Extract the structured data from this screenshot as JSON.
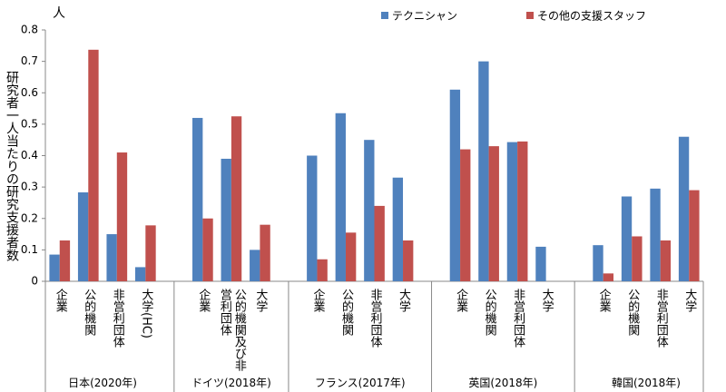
{
  "chart_data": {
    "type": "bar",
    "unit": "人",
    "y_label": "研究者一人当たりの研究支援者数",
    "groups": [
      {
        "name": "日本(2020年)",
        "categories": [
          "企業",
          "公的機関",
          "非営利団体",
          "大学(HC)"
        ]
      },
      {
        "name": "ドイツ(2018年)",
        "categories": [
          "企業",
          "公的機関及び非営利団体",
          "大学"
        ]
      },
      {
        "name": "フランス(2017年)",
        "categories": [
          "企業",
          "公的機関",
          "非営利団体",
          "大学"
        ]
      },
      {
        "name": "英国(2018年)",
        "categories": [
          "企業",
          "公的機関",
          "非営利団体",
          "大学"
        ]
      },
      {
        "name": "韓国(2018年)",
        "categories": [
          "企業",
          "公的機関",
          "非営利団体",
          "大学"
        ]
      }
    ],
    "series": [
      {
        "name": "テクニシャン",
        "color": "#4f81bd",
        "values": [
          0.085,
          0.283,
          0.15,
          0.045,
          0.52,
          0.39,
          0.1,
          0.4,
          0.535,
          0.45,
          0.33,
          0.61,
          0.7,
          0.443,
          0.11,
          0.115,
          0.27,
          0.295,
          0.46
        ]
      },
      {
        "name": "その他の支援スタッフ",
        "color": "#c0504d",
        "values": [
          0.13,
          0.737,
          0.41,
          0.178,
          0.2,
          0.525,
          0.18,
          0.07,
          0.155,
          0.24,
          0.13,
          0.42,
          0.43,
          0.445,
          null,
          0.025,
          0.143,
          0.13,
          0.29
        ]
      }
    ],
    "ylim": [
      0,
      0.8
    ],
    "yticks": [
      {
        "value": 0,
        "label": "0"
      },
      0.1,
      0.2,
      0.3,
      0.4,
      0.5,
      0.6,
      0.7,
      {
        "value": 0.8,
        "label": "0.8"
      }
    ],
    "grid": false
  }
}
